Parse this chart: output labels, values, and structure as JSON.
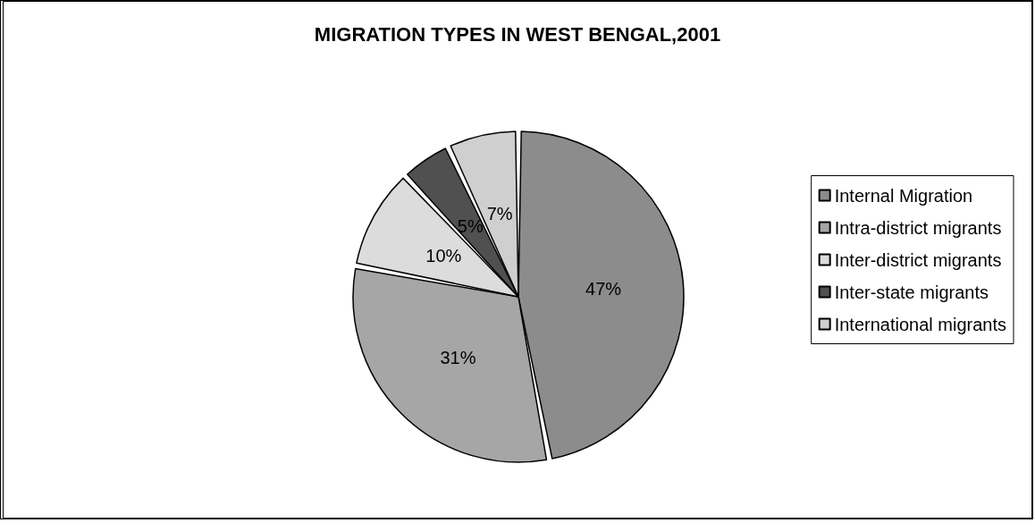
{
  "chart_data": {
    "type": "pie",
    "title": "MIGRATION TYPES IN WEST BENGAL,2001",
    "categories": [
      "Internal Migration",
      "Intra-district migrants",
      "Inter-district migrants",
      "Inter-state migrants",
      "International migrants"
    ],
    "values": [
      47,
      31,
      10,
      5,
      7
    ],
    "colors": [
      "#8c8c8c",
      "#a6a6a6",
      "#dcdcdc",
      "#505050",
      "#cfcfcf"
    ],
    "value_labels": [
      "47%",
      "31%",
      "10%",
      "5%",
      "7%"
    ],
    "legend": "right"
  }
}
